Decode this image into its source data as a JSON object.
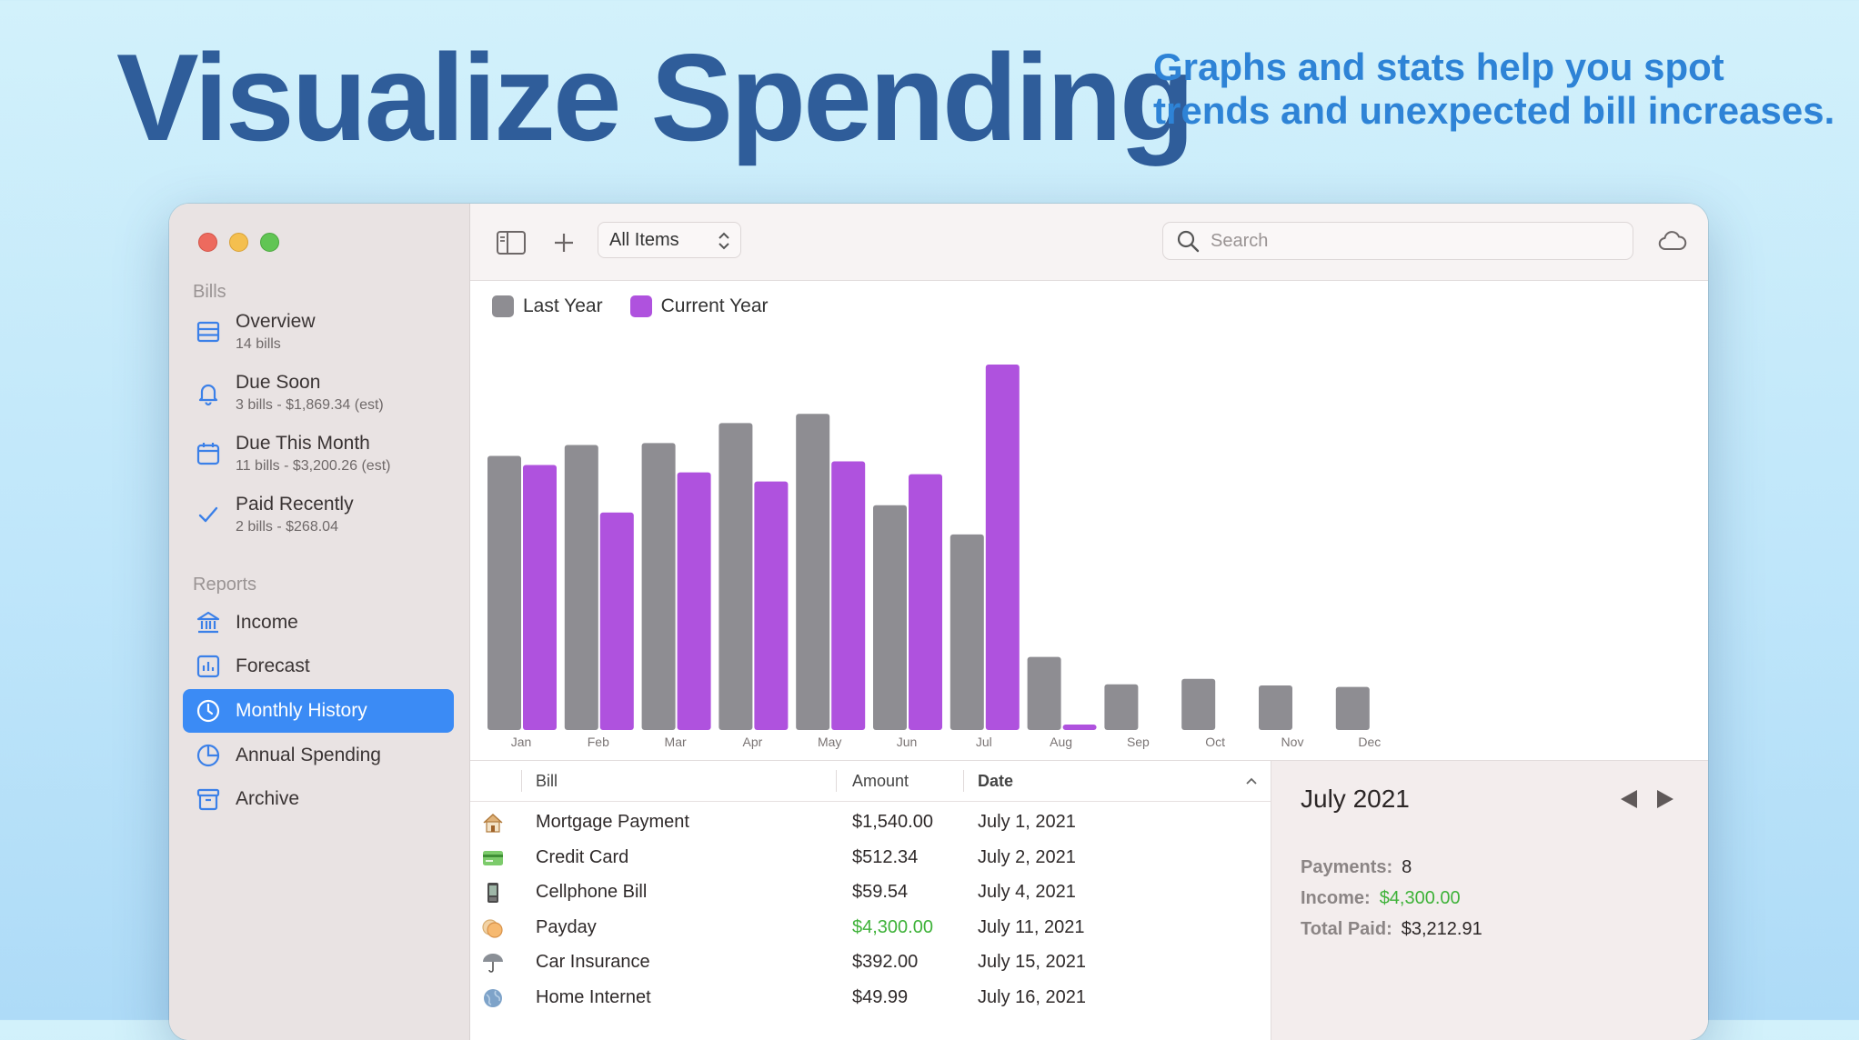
{
  "headline": "Visualize Spending",
  "tagline": [
    "Graphs and stats help you spot",
    "trends and unexpected bill increases."
  ],
  "sidebar": {
    "bills_label": "Bills",
    "reports_label": "Reports",
    "bills": [
      {
        "label": "Overview",
        "sub": "14 bills",
        "icon": "list-icon"
      },
      {
        "label": "Due Soon",
        "sub": "3 bills - $1,869.34 (est)",
        "icon": "bell-icon"
      },
      {
        "label": "Due This Month",
        "sub": "11 bills - $3,200.26 (est)",
        "icon": "calendar-icon"
      },
      {
        "label": "Paid Recently",
        "sub": "2 bills - $268.04",
        "icon": "checkmark-icon"
      }
    ],
    "reports": [
      {
        "label": "Income",
        "icon": "bank-icon"
      },
      {
        "label": "Forecast",
        "icon": "bar-chart-icon"
      },
      {
        "label": "Monthly History",
        "icon": "clock-icon",
        "active": true
      },
      {
        "label": "Annual Spending",
        "icon": "pie-icon"
      },
      {
        "label": "Archive",
        "icon": "archive-box-icon"
      }
    ]
  },
  "toolbar": {
    "filter_value": "All Items",
    "search_placeholder": "Search"
  },
  "chart_data": {
    "type": "bar",
    "categories": [
      "Jan",
      "Feb",
      "Mar",
      "Apr",
      "May",
      "Jun",
      "Jul",
      "Aug",
      "Sep",
      "Oct",
      "Nov",
      "Dec"
    ],
    "series": [
      {
        "name": "Last Year",
        "color": "#8e8d92",
        "values": [
          75,
          78,
          78.5,
          84,
          86.5,
          61.5,
          53.5,
          20,
          12.5,
          14,
          12.2,
          11.8
        ]
      },
      {
        "name": "Current Year",
        "color": "#af52de",
        "values": [
          72.5,
          59.5,
          70.5,
          68,
          73.5,
          70,
          100,
          1.5,
          null,
          null,
          null,
          null
        ]
      }
    ],
    "ylim": [
      0,
      100
    ],
    "legend": "top-left",
    "grid": false
  },
  "table": {
    "columns": [
      "Bill",
      "Amount",
      "Date"
    ],
    "rows": [
      {
        "icon": "house-icon",
        "bill": "Mortgage Payment",
        "amount": "$1,540.00",
        "date": "July 1, 2021"
      },
      {
        "icon": "credit-card-icon",
        "bill": "Credit Card",
        "amount": "$512.34",
        "date": "July 2, 2021"
      },
      {
        "icon": "phone-icon",
        "bill": "Cellphone Bill",
        "amount": "$59.54",
        "date": "July 4, 2021"
      },
      {
        "icon": "coins-icon",
        "bill": "Payday",
        "amount": "$4,300.00",
        "date": "July 11, 2021",
        "income": true
      },
      {
        "icon": "umbrella-icon",
        "bill": "Car Insurance",
        "amount": "$392.00",
        "date": "July 15, 2021"
      },
      {
        "icon": "globe-icon",
        "bill": "Home Internet",
        "amount": "$49.99",
        "date": "July 16, 2021"
      }
    ]
  },
  "detail": {
    "month": "July 2021",
    "payments_label": "Payments:",
    "payments": "8",
    "income_label": "Income:",
    "income": "$4,300.00",
    "total_label": "Total Paid:",
    "total": "$3,212.91"
  },
  "colors": {
    "accent": "#3b8bf5",
    "last_year": "#8e8d92",
    "current_year": "#af52de",
    "income": "#3fb23a"
  }
}
